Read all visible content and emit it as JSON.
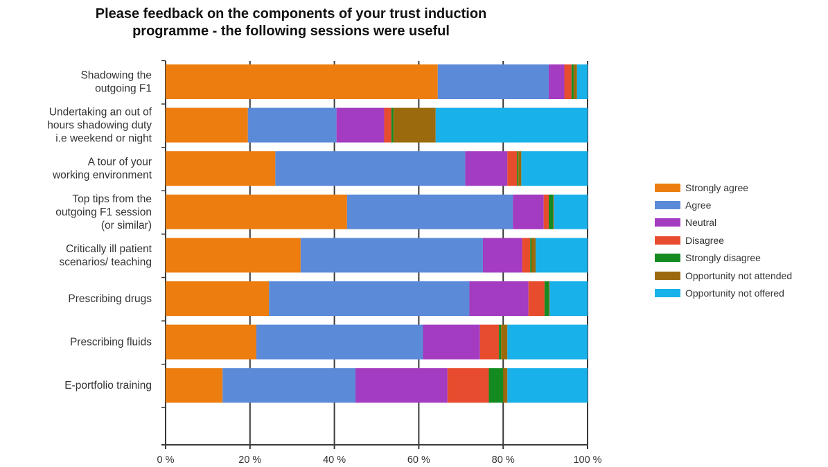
{
  "chart_data": {
    "type": "bar",
    "orientation": "horizontal",
    "stacked": "percent",
    "title": "Please feedback on the components of your trust induction programme - the following sessions were useful",
    "title_lines": [
      "Please feedback on the components of your trust induction",
      "programme - the following sessions were useful"
    ],
    "xlim": [
      0,
      100
    ],
    "x_ticks": [
      "0 %",
      "20 %",
      "40 %",
      "60 %",
      "80 %",
      "100 %"
    ],
    "grid": true,
    "legend_position": "right",
    "categories": [
      [
        "Shadowing the",
        "outgoing F1"
      ],
      [
        "Undertaking an out of",
        "hours shadowing duty",
        "i.e weekend or night"
      ],
      [
        "A tour of your",
        "working environment"
      ],
      [
        "Top tips from the",
        "outgoing F1 session",
        "(or similar)"
      ],
      [
        "Critically ill patient",
        "scenarios/ teaching"
      ],
      [
        "Prescribing drugs"
      ],
      [
        "Prescribing fluids"
      ],
      [
        "E-portfolio training"
      ]
    ],
    "series": [
      {
        "name": "Strongly agree",
        "color": "#ED7D0E",
        "values": [
          64.5,
          19.5,
          26,
          43,
          32,
          24.5,
          21.5,
          13.5
        ]
      },
      {
        "name": "Agree",
        "color": "#5B8AD8",
        "values": [
          26.3,
          21,
          45,
          39.3,
          43.2,
          47.5,
          39.5,
          31.5
        ]
      },
      {
        "name": "Neutral",
        "color": "#A33CC0",
        "values": [
          3.7,
          11.3,
          10,
          7.3,
          9.3,
          14,
          13.5,
          21.8
        ]
      },
      {
        "name": "Disagree",
        "color": "#E84C2E",
        "values": [
          1.7,
          1.7,
          2.3,
          1.2,
          1.9,
          3.8,
          4.5,
          9.8
        ]
      },
      {
        "name": "Strongly disagree",
        "color": "#148B21",
        "values": [
          0.5,
          0.5,
          0.3,
          1,
          0.3,
          1,
          0.5,
          3.4
        ]
      },
      {
        "name": "Opportunity not attended",
        "color": "#9A6A0C",
        "values": [
          0.8,
          10,
          0.7,
          0.2,
          1,
          0.2,
          1.5,
          1
        ]
      },
      {
        "name": "Opportunity not offered",
        "color": "#19B1EA",
        "values": [
          2.5,
          36,
          15.7,
          8,
          12.3,
          9,
          19,
          19
        ]
      }
    ]
  }
}
